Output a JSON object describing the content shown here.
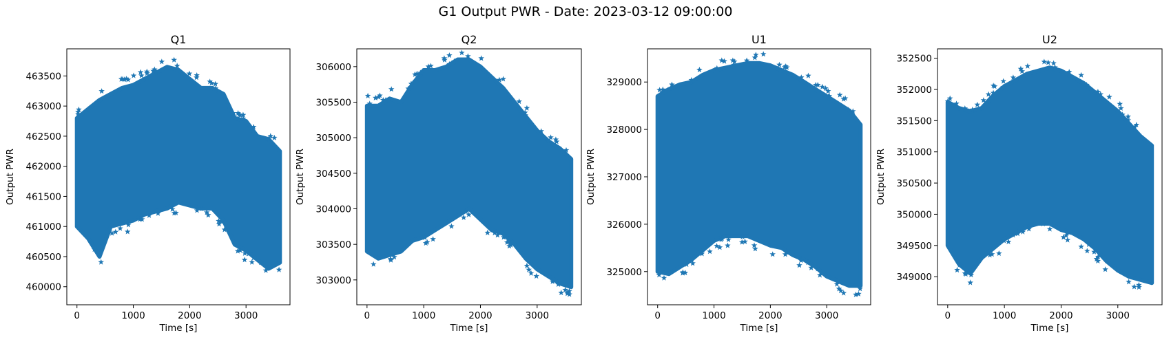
{
  "figure": {
    "title": "G1 Output PWR - Date: 2023-03-12 09:00:00"
  },
  "chart_data": [
    {
      "type": "scatter",
      "title": "Q1",
      "xlabel": "Time [s]",
      "ylabel": "Output PWR",
      "marker": "star",
      "color": "#1f77b4",
      "xlim": [
        -180,
        3780
      ],
      "ylim": [
        459700,
        463950
      ],
      "xticks": [
        0,
        1000,
        2000,
        3000
      ],
      "yticks": [
        460000,
        460500,
        461000,
        461500,
        462000,
        462500,
        463000,
        463500
      ],
      "x": [
        0,
        200,
        400,
        600,
        800,
        1000,
        1200,
        1400,
        1600,
        1800,
        2000,
        2200,
        2400,
        2600,
        2800,
        3000,
        3200,
        3400,
        3600
      ],
      "y_upper": [
        462800,
        462950,
        463100,
        463200,
        463300,
        463350,
        463450,
        463550,
        463650,
        463600,
        463450,
        463300,
        463300,
        463200,
        462800,
        462750,
        462500,
        462450,
        462250
      ],
      "y_lower": [
        461000,
        460800,
        460500,
        461000,
        461050,
        461100,
        461200,
        461250,
        461300,
        461400,
        461350,
        461300,
        461300,
        461100,
        460700,
        460600,
        460450,
        460300,
        460400
      ]
    },
    {
      "type": "scatter",
      "title": "Q2",
      "xlabel": "Time [s]",
      "ylabel": "Output PWR",
      "marker": "star",
      "color": "#1f77b4",
      "xlim": [
        -180,
        3780
      ],
      "ylim": [
        302650,
        306250
      ],
      "xticks": [
        0,
        1000,
        2000,
        3000
      ],
      "yticks": [
        303000,
        303500,
        304000,
        304500,
        305000,
        305500,
        306000
      ],
      "x": [
        0,
        200,
        400,
        600,
        800,
        1000,
        1200,
        1400,
        1600,
        1800,
        2000,
        2200,
        2400,
        2600,
        2800,
        3000,
        3200,
        3400,
        3600
      ],
      "y_upper": [
        305450,
        305450,
        305550,
        305500,
        305750,
        305950,
        305950,
        306000,
        306100,
        306100,
        306000,
        305850,
        305700,
        305500,
        305300,
        305100,
        304950,
        304850,
        304700
      ],
      "y_lower": [
        303400,
        303300,
        303350,
        303400,
        303550,
        303600,
        303700,
        303800,
        303900,
        304000,
        303850,
        303700,
        303650,
        303500,
        303300,
        303150,
        303050,
        302950,
        302900
      ]
    },
    {
      "type": "scatter",
      "title": "U1",
      "xlabel": "Time [s]",
      "ylabel": "Output PWR",
      "marker": "star",
      "color": "#1f77b4",
      "xlim": [
        -180,
        3780
      ],
      "ylim": [
        324300,
        329700
      ],
      "xticks": [
        0,
        1000,
        2000,
        3000
      ],
      "yticks": [
        325000,
        326000,
        327000,
        328000,
        329000
      ],
      "x": [
        0,
        200,
        400,
        600,
        800,
        1000,
        1200,
        1400,
        1600,
        1800,
        2000,
        2200,
        2400,
        2600,
        2800,
        3000,
        3200,
        3400,
        3600
      ],
      "y_upper": [
        328700,
        328850,
        328950,
        329000,
        329150,
        329250,
        329300,
        329350,
        329400,
        329400,
        329350,
        329250,
        329150,
        329000,
        328850,
        328700,
        328550,
        328400,
        328100
      ],
      "y_lower": [
        325000,
        324950,
        325100,
        325250,
        325450,
        325650,
        325750,
        325750,
        325750,
        325650,
        325550,
        325500,
        325350,
        325250,
        325100,
        324900,
        324800,
        324700,
        324700
      ]
    },
    {
      "type": "scatter",
      "title": "U2",
      "xlabel": "Time [s]",
      "ylabel": "Output PWR",
      "marker": "star",
      "color": "#1f77b4",
      "xlim": [
        -180,
        3780
      ],
      "ylim": [
        348550,
        352650
      ],
      "xticks": [
        0,
        1000,
        2000,
        3000
      ],
      "yticks": [
        349000,
        349500,
        350000,
        350500,
        351000,
        351500,
        352000,
        352500
      ],
      "x": [
        0,
        200,
        400,
        600,
        800,
        1000,
        1200,
        1400,
        1600,
        1800,
        2000,
        2200,
        2400,
        2600,
        2800,
        3000,
        3200,
        3400,
        3600
      ],
      "y_upper": [
        351800,
        351700,
        351650,
        351700,
        351900,
        352050,
        352150,
        352250,
        352300,
        352350,
        352300,
        352200,
        352100,
        351950,
        351800,
        351650,
        351450,
        351250,
        351100
      ],
      "y_lower": [
        349500,
        349200,
        349050,
        349300,
        349450,
        349600,
        349700,
        349800,
        349850,
        349850,
        349750,
        349700,
        349600,
        349450,
        349250,
        349100,
        349000,
        348950,
        348900
      ]
    }
  ]
}
